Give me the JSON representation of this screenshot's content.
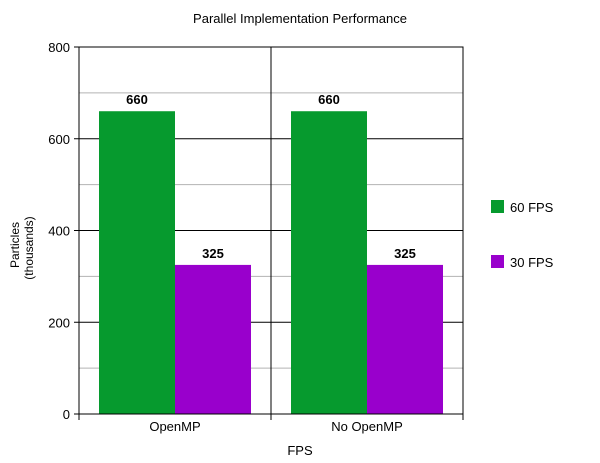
{
  "chart_data": {
    "type": "bar",
    "title": "Parallel Implementation Performance",
    "xlabel": "FPS",
    "ylabel": [
      "Particles",
      "(thousands)"
    ],
    "categories": [
      "OpenMP",
      "No OpenMP"
    ],
    "series": [
      {
        "name": "60 FPS",
        "color": "#069a2e",
        "values": [
          660,
          660
        ]
      },
      {
        "name": "30 FPS",
        "color": "#9900cc",
        "values": [
          325,
          325
        ]
      }
    ],
    "ylim": [
      0,
      800
    ],
    "yticks": [
      0,
      200,
      400,
      600,
      800
    ],
    "grid": true,
    "legend_position": "right"
  }
}
